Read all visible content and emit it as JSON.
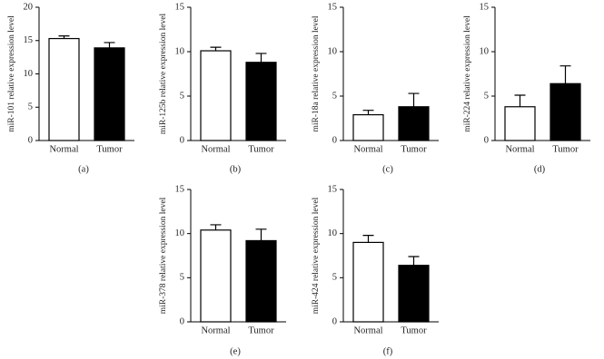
{
  "chart_data": [
    {
      "type": "bar",
      "ylabel": "miR-101 relative expression level",
      "panel": "(a)",
      "categories": [
        "Normal",
        "Tumor"
      ],
      "values": [
        15.3,
        13.9
      ],
      "errors": [
        0.4,
        0.8
      ],
      "colors": [
        "#ffffff",
        "#000000"
      ],
      "ylim": [
        0,
        20
      ],
      "yticks": [
        0,
        5,
        10,
        15,
        20
      ]
    },
    {
      "type": "bar",
      "ylabel": "miR-125b relative expression level",
      "panel": "(b)",
      "categories": [
        "Normal",
        "Tumor"
      ],
      "values": [
        10.1,
        8.8
      ],
      "errors": [
        0.4,
        1.0
      ],
      "colors": [
        "#ffffff",
        "#000000"
      ],
      "ylim": [
        0,
        15
      ],
      "yticks": [
        0,
        5,
        10,
        15
      ]
    },
    {
      "type": "bar",
      "ylabel": "miR-18a relative expression level",
      "panel": "(c)",
      "categories": [
        "Normal",
        "Tumor"
      ],
      "values": [
        2.9,
        3.8
      ],
      "errors": [
        0.5,
        1.5
      ],
      "colors": [
        "#ffffff",
        "#000000"
      ],
      "ylim": [
        0,
        15
      ],
      "yticks": [
        0,
        5,
        10,
        15
      ]
    },
    {
      "type": "bar",
      "ylabel": "miR-224 relative expression level",
      "panel": "(d)",
      "categories": [
        "Normal",
        "Tumor"
      ],
      "values": [
        3.8,
        6.4
      ],
      "errors": [
        1.3,
        2.0
      ],
      "colors": [
        "#ffffff",
        "#000000"
      ],
      "ylim": [
        0,
        15
      ],
      "yticks": [
        0,
        5,
        10,
        15
      ]
    },
    {
      "type": "bar",
      "ylabel": "miR-378 relative expression level",
      "panel": "(e)",
      "categories": [
        "Normal",
        "Tumor"
      ],
      "values": [
        10.4,
        9.2
      ],
      "errors": [
        0.6,
        1.3
      ],
      "colors": [
        "#ffffff",
        "#000000"
      ],
      "ylim": [
        0,
        15
      ],
      "yticks": [
        0,
        5,
        10,
        15
      ]
    },
    {
      "type": "bar",
      "ylabel": "miR-424 relative expression level",
      "panel": "(f)",
      "categories": [
        "Normal",
        "Tumor"
      ],
      "values": [
        9.0,
        6.4
      ],
      "errors": [
        0.8,
        1.0
      ],
      "colors": [
        "#ffffff",
        "#000000"
      ],
      "ylim": [
        0,
        15
      ],
      "yticks": [
        0,
        5,
        10,
        15
      ]
    }
  ]
}
